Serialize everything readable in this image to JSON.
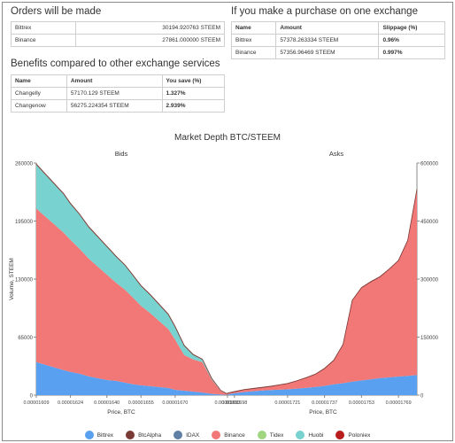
{
  "orders": {
    "title": "Orders will be made",
    "rows": [
      {
        "exchange": "Bittrex",
        "amount": "30194.920763 STEEM"
      },
      {
        "exchange": "Binance",
        "amount": "27861.000000 STEEM"
      }
    ]
  },
  "single": {
    "title": "If you make a purchase on one exchange",
    "headers": [
      "Name",
      "Amount",
      "Slippage (%)"
    ],
    "rows": [
      {
        "name": "Bittrex",
        "amount": "57378.263334 STEEM",
        "slippage": "0.96%"
      },
      {
        "name": "Binance",
        "amount": "57356.96469 STEEM",
        "slippage": "0.997%"
      }
    ]
  },
  "benefits": {
    "title": "Benefits compared to other exchange services",
    "headers": [
      "Name",
      "Amount",
      "You save (%)"
    ],
    "rows": [
      {
        "name": "Changelly",
        "amount": "57170.129 STEEM",
        "save": "1.327%"
      },
      {
        "name": "Changenow",
        "amount": "56275.224354 STEEM",
        "save": "2.939%"
      }
    ]
  },
  "chart_data": {
    "type": "area",
    "title": "Market Depth BTC/STEEM",
    "bids": {
      "subtitle": "Bids",
      "xlabel": "Price, BTC",
      "ylabel": "Volume, STEEM",
      "x_ticks": [
        "0.00001609",
        "0.00001624",
        "0.00001640",
        "0.00001655",
        "0.00001670",
        "0.00001693"
      ],
      "y_ticks": [
        "0",
        "65000",
        "130000",
        "195000",
        "260000"
      ],
      "ylim": [
        0,
        260000
      ],
      "x": [
        1.609e-05,
        1.613e-05,
        1.617e-05,
        1.621e-05,
        1.624e-05,
        1.628e-05,
        1.632e-05,
        1.636e-05,
        1.64e-05,
        1.644e-05,
        1.648e-05,
        1.652e-05,
        1.655e-05,
        1.659e-05,
        1.663e-05,
        1.667e-05,
        1.67e-05,
        1.674e-05,
        1.678e-05,
        1.682e-05,
        1.686e-05,
        1.69e-05,
        1.693e-05
      ],
      "series": [
        {
          "name": "Bittrex",
          "values": [
            37000,
            34000,
            31000,
            28000,
            26000,
            24000,
            21000,
            19000,
            17000,
            16000,
            14000,
            12000,
            11000,
            10000,
            9000,
            8000,
            6000,
            5000,
            4000,
            3000,
            1500,
            800,
            300
          ]
        },
        {
          "name": "Binance",
          "values": [
            172000,
            166000,
            160000,
            154000,
            148000,
            140000,
            132000,
            125000,
            118000,
            110000,
            104000,
            96000,
            89000,
            82000,
            74000,
            66000,
            56000,
            40000,
            36000,
            34000,
            16000,
            4000,
            800
          ]
        },
        {
          "name": "Huobi",
          "values": [
            49000,
            47000,
            45000,
            43000,
            40000,
            38000,
            35000,
            33000,
            31000,
            29000,
            27000,
            24000,
            22000,
            20000,
            18000,
            16000,
            14000,
            10000,
            5000,
            3000,
            1500,
            500,
            200
          ]
        },
        {
          "name": "Tidex",
          "values": [
            500,
            500,
            500,
            500,
            500,
            500,
            500,
            500,
            500,
            500,
            500,
            500,
            500,
            500,
            500,
            500,
            500,
            500,
            300,
            200,
            100,
            50,
            0
          ]
        },
        {
          "name": "BtcAlpha",
          "values": [
            300,
            300,
            300,
            300,
            300,
            300,
            300,
            300,
            300,
            300,
            300,
            300,
            300,
            300,
            300,
            300,
            300,
            300,
            200,
            100,
            50,
            0,
            0
          ]
        }
      ]
    },
    "asks": {
      "subtitle": "Asks",
      "xlabel": "Price, BTC",
      "x_ticks": [
        "0.00001698",
        "0.00001721",
        "0.00001737",
        "0.00001753",
        "0.00001769"
      ],
      "y_ticks": [
        "0",
        "150000",
        "300000",
        "450000",
        "600000"
      ],
      "ylim": [
        0,
        600000
      ],
      "x": [
        1.695e-05,
        1.698e-05,
        1.702e-05,
        1.706e-05,
        1.71e-05,
        1.714e-05,
        1.717e-05,
        1.721e-05,
        1.725e-05,
        1.729e-05,
        1.733e-05,
        1.737e-05,
        1.741e-05,
        1.745e-05,
        1.749e-05,
        1.753e-05,
        1.757e-05,
        1.761e-05,
        1.765e-05,
        1.769e-05,
        1.773e-05,
        1.777e-05
      ],
      "series": [
        {
          "name": "Bittrex",
          "values": [
            2000,
            5000,
            8000,
            10000,
            12000,
            13000,
            14000,
            15000,
            17000,
            19000,
            21000,
            24000,
            28000,
            31000,
            35000,
            38000,
            41000,
            44000,
            46000,
            48000,
            50000,
            52000
          ]
        },
        {
          "name": "Binance",
          "values": [
            3000,
            4000,
            6000,
            7000,
            8000,
            10000,
            12000,
            15000,
            20000,
            26000,
            33000,
            45000,
            62000,
            100000,
            210000,
            240000,
            252000,
            262000,
            280000,
            300000,
            350000,
            480000
          ]
        },
        {
          "name": "BtcAlpha",
          "values": [
            300,
            300,
            300,
            300,
            300,
            300,
            300,
            300,
            300,
            300,
            300,
            300,
            300,
            300,
            300,
            300,
            300,
            300,
            300,
            300,
            300,
            300
          ]
        }
      ]
    },
    "legend": [
      {
        "name": "Bittrex",
        "color": "#5aa0f0"
      },
      {
        "name": "BtcAlpha",
        "color": "#7a3b36"
      },
      {
        "name": "IDAX",
        "color": "#5f7fa4"
      },
      {
        "name": "Binance",
        "color": "#f27777"
      },
      {
        "name": "Tidex",
        "color": "#9fd67f"
      },
      {
        "name": "Huobi",
        "color": "#78d2cf"
      },
      {
        "name": "Poloniex",
        "color": "#b81c1c"
      }
    ]
  }
}
